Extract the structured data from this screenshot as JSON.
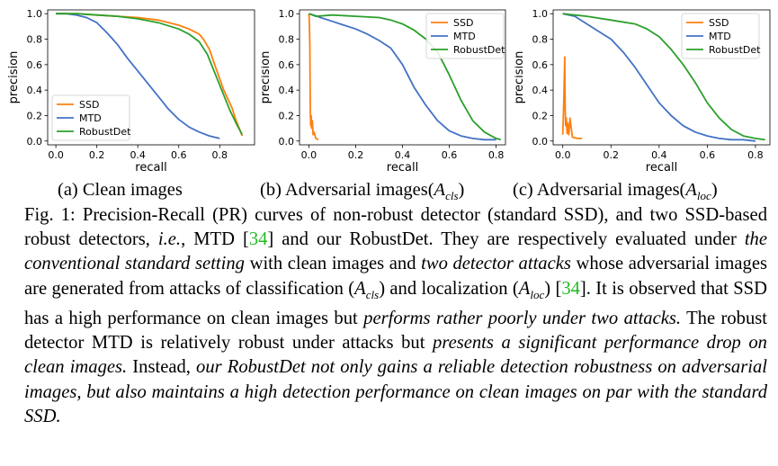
{
  "chart_data": [
    {
      "type": "line",
      "xlabel": "recall",
      "ylabel": "precision",
      "xlim": [
        -0.04,
        0.97
      ],
      "ylim": [
        -0.03,
        1.03
      ],
      "x_ticks": [
        "0.0",
        "0.2",
        "0.4",
        "0.6",
        "0.8"
      ],
      "y_ticks": [
        "0.0",
        "0.2",
        "0.4",
        "0.6",
        "0.8",
        "1.0"
      ],
      "legend_position": "lower-left",
      "series": [
        {
          "name": "SSD",
          "color": "#ff7f0e",
          "x": [
            0,
            0.1,
            0.2,
            0.3,
            0.4,
            0.5,
            0.6,
            0.65,
            0.7,
            0.72,
            0.75,
            0.78,
            0.82,
            0.86,
            0.88,
            0.9,
            0.91
          ],
          "y": [
            1.0,
            1.0,
            0.99,
            0.98,
            0.97,
            0.95,
            0.91,
            0.88,
            0.84,
            0.8,
            0.72,
            0.58,
            0.4,
            0.26,
            0.16,
            0.08,
            0.04
          ]
        },
        {
          "name": "MTD",
          "color": "#4472c4",
          "x": [
            0,
            0.05,
            0.1,
            0.15,
            0.2,
            0.25,
            0.3,
            0.35,
            0.4,
            0.45,
            0.5,
            0.55,
            0.6,
            0.65,
            0.7,
            0.75,
            0.8
          ],
          "y": [
            1.0,
            1.0,
            0.99,
            0.97,
            0.93,
            0.85,
            0.76,
            0.65,
            0.55,
            0.45,
            0.35,
            0.25,
            0.17,
            0.11,
            0.07,
            0.04,
            0.02
          ]
        },
        {
          "name": "RobustDet",
          "color": "#2ca02c",
          "x": [
            0,
            0.1,
            0.2,
            0.3,
            0.4,
            0.5,
            0.6,
            0.65,
            0.7,
            0.74,
            0.78,
            0.82,
            0.85,
            0.88,
            0.91
          ],
          "y": [
            1.0,
            1.0,
            0.99,
            0.98,
            0.96,
            0.93,
            0.88,
            0.84,
            0.78,
            0.68,
            0.52,
            0.36,
            0.24,
            0.14,
            0.05
          ]
        }
      ]
    },
    {
      "type": "line",
      "xlabel": "recall",
      "ylabel": "precision",
      "xlim": [
        -0.04,
        0.84
      ],
      "ylim": [
        -0.03,
        1.03
      ],
      "x_ticks": [
        "0.0",
        "0.2",
        "0.4",
        "0.6",
        "0.8"
      ],
      "y_ticks": [
        "0.0",
        "0.2",
        "0.4",
        "0.6",
        "0.8",
        "1.0"
      ],
      "legend_position": "upper-right",
      "series": [
        {
          "name": "SSD",
          "color": "#ff7f0e",
          "x": [
            0,
            0.002,
            0.004,
            0.006,
            0.008,
            0.01,
            0.012,
            0.015,
            0.018,
            0.022,
            0.03,
            0.04
          ],
          "y": [
            1.0,
            0.95,
            0.75,
            0.22,
            0.12,
            0.2,
            0.1,
            0.16,
            0.05,
            0.07,
            0.02,
            0.01
          ]
        },
        {
          "name": "MTD",
          "color": "#4472c4",
          "x": [
            0,
            0.02,
            0.05,
            0.1,
            0.15,
            0.2,
            0.25,
            0.3,
            0.35,
            0.4,
            0.45,
            0.5,
            0.55,
            0.6,
            0.65,
            0.7,
            0.75,
            0.8
          ],
          "y": [
            1.0,
            0.99,
            0.97,
            0.94,
            0.91,
            0.88,
            0.84,
            0.79,
            0.73,
            0.6,
            0.42,
            0.28,
            0.16,
            0.08,
            0.04,
            0.02,
            0.01,
            0.01
          ]
        },
        {
          "name": "RobustDet",
          "color": "#2ca02c",
          "x": [
            0,
            0.03,
            0.1,
            0.2,
            0.3,
            0.35,
            0.4,
            0.45,
            0.5,
            0.55,
            0.6,
            0.65,
            0.7,
            0.75,
            0.8,
            0.82
          ],
          "y": [
            1.0,
            0.98,
            0.99,
            0.98,
            0.97,
            0.95,
            0.92,
            0.87,
            0.8,
            0.7,
            0.52,
            0.32,
            0.16,
            0.07,
            0.02,
            0.01
          ]
        }
      ]
    },
    {
      "type": "line",
      "xlabel": "recall",
      "ylabel": "precision",
      "xlim": [
        -0.04,
        0.86
      ],
      "ylim": [
        -0.03,
        1.03
      ],
      "x_ticks": [
        "0.0",
        "0.2",
        "0.4",
        "0.6",
        "0.8"
      ],
      "y_ticks": [
        "0.0",
        "0.2",
        "0.4",
        "0.6",
        "0.8",
        "1.0"
      ],
      "legend_position": "upper-right",
      "series": [
        {
          "name": "SSD",
          "color": "#ff7f0e",
          "x": [
            0,
            0.004,
            0.008,
            0.01,
            0.012,
            0.015,
            0.018,
            0.02,
            0.025,
            0.03,
            0.04,
            0.06,
            0.08
          ],
          "y": [
            0.05,
            0.3,
            0.66,
            0.25,
            0.12,
            0.18,
            0.06,
            0.14,
            0.05,
            0.18,
            0.03,
            0.02,
            0.02
          ]
        },
        {
          "name": "MTD",
          "color": "#4472c4",
          "x": [
            0,
            0.05,
            0.1,
            0.15,
            0.2,
            0.25,
            0.3,
            0.35,
            0.4,
            0.45,
            0.5,
            0.55,
            0.6,
            0.65,
            0.7,
            0.75,
            0.8
          ],
          "y": [
            1.0,
            0.98,
            0.92,
            0.86,
            0.8,
            0.7,
            0.58,
            0.44,
            0.3,
            0.2,
            0.12,
            0.07,
            0.04,
            0.02,
            0.01,
            0.01,
            0.0
          ]
        },
        {
          "name": "RobustDet",
          "color": "#2ca02c",
          "x": [
            0,
            0.05,
            0.1,
            0.2,
            0.3,
            0.35,
            0.4,
            0.45,
            0.5,
            0.55,
            0.6,
            0.65,
            0.7,
            0.75,
            0.8,
            0.84
          ],
          "y": [
            1.0,
            0.99,
            0.98,
            0.95,
            0.92,
            0.88,
            0.82,
            0.72,
            0.6,
            0.46,
            0.3,
            0.18,
            0.09,
            0.04,
            0.02,
            0.01
          ]
        }
      ]
    }
  ],
  "subcaptions": [
    {
      "label": "(a) Clean images"
    },
    {
      "label": "(b) Adversarial images(",
      "math_main": "A",
      "math_sub": "cls",
      "close": ")"
    },
    {
      "label": "(c) Adversarial images(",
      "math_main": "A",
      "math_sub": "loc",
      "close": ")"
    }
  ],
  "caption": {
    "p1": "Fig. 1: Precision-Recall (PR) curves of non-robust detector (standard SSD), and two SSD-based robust detectors, ",
    "ie": "i.e.",
    "p2": ", MTD [",
    "cite1": "34",
    "p3": "] and our RobustDet. They are respectively evaluated under ",
    "it1": "the conventional standard setting",
    "p4": " with clean images and ",
    "it2": "two detector attacks",
    "p5": " whose adversarial images are generated from attacks of classification (",
    "m1_main": "A",
    "m1_sub": "cls",
    "p6": ") and localization (",
    "m2_main": "A",
    "m2_sub": "loc",
    "p7": ") [",
    "cite2": "34",
    "p8": "]. It is observed that SSD has a high performance on clean images but ",
    "it3": "performs rather poorly under two attacks.",
    "p9": " The robust detector MTD is relatively robust under attacks but ",
    "it4": "presents a significant performance drop on clean images.",
    "p10": " Instead, ",
    "it5": "our RobustDet not only gains a reliable detection robustness on adversarial images, but also maintains a high detection performance on clean images on par with the standard SSD."
  }
}
